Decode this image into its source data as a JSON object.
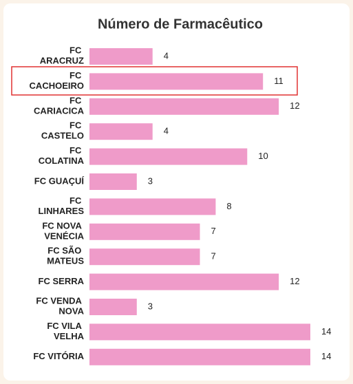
{
  "chart_data": {
    "type": "bar",
    "orientation": "horizontal",
    "title": "Número de Farmacêutico",
    "categories": [
      "FC ARACRUZ",
      "FC CACHOEIRO",
      "FC CARIACICA",
      "FC CASTELO",
      "FC COLATINA",
      "FC GUAÇUÍ",
      "FC LINHARES",
      "FC NOVA VENÉCIA",
      "FC SÃO MATEUS",
      "FC SERRA",
      "FC VENDA NOVA",
      "FC VILA VELHA",
      "FC VITÓRIA"
    ],
    "values": [
      4,
      11,
      12,
      4,
      10,
      3,
      8,
      7,
      7,
      12,
      3,
      14,
      14
    ],
    "color": "#ef9bc9"
  }
}
